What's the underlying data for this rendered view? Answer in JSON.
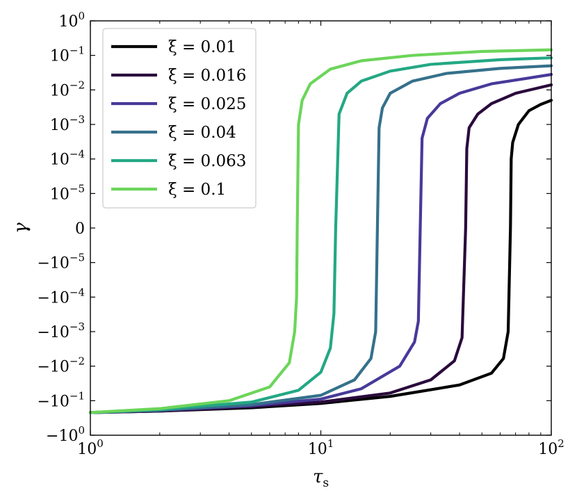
{
  "chart_data": {
    "type": "line",
    "xlabel": "τ",
    "xlabel_sub": "s",
    "ylabel": "γ",
    "x_scale": "log",
    "y_scale": "symlog",
    "xlim": [
      1,
      100
    ],
    "ylim": [
      -1,
      1
    ],
    "x_ticks": [
      {
        "value": 1,
        "base": "10",
        "exp": "0"
      },
      {
        "value": 10,
        "base": "10",
        "exp": "1"
      },
      {
        "value": 100,
        "base": "10",
        "exp": "2"
      }
    ],
    "y_ticks": [
      {
        "value": 1,
        "sign": "",
        "base": "10",
        "exp": "0"
      },
      {
        "value": 0.1,
        "sign": "",
        "base": "10",
        "exp": "−1"
      },
      {
        "value": 0.01,
        "sign": "",
        "base": "10",
        "exp": "−2"
      },
      {
        "value": 0.001,
        "sign": "",
        "base": "10",
        "exp": "−3"
      },
      {
        "value": 0.0001,
        "sign": "",
        "base": "10",
        "exp": "−4"
      },
      {
        "value": 1e-05,
        "sign": "",
        "base": "10",
        "exp": "−5"
      },
      {
        "value": 0,
        "sign": "",
        "base": "0",
        "exp": ""
      },
      {
        "value": -1e-05,
        "sign": "−",
        "base": "10",
        "exp": "−5"
      },
      {
        "value": -0.0001,
        "sign": "−",
        "base": "10",
        "exp": "−4"
      },
      {
        "value": -0.001,
        "sign": "−",
        "base": "10",
        "exp": "−3"
      },
      {
        "value": -0.01,
        "sign": "−",
        "base": "10",
        "exp": "−2"
      },
      {
        "value": -0.1,
        "sign": "−",
        "base": "10",
        "exp": "−1"
      },
      {
        "value": -1,
        "sign": "−",
        "base": "10",
        "exp": "0"
      }
    ],
    "legend": "top-left",
    "grid": false,
    "series": [
      {
        "name": "ξ = 0.01",
        "color": "#000004",
        "x": [
          1,
          2,
          5,
          10,
          20,
          40,
          55,
          62,
          65,
          66.5,
          67,
          68,
          72,
          80,
          90,
          100
        ],
        "y": [
          -0.22,
          -0.2,
          -0.16,
          -0.12,
          -0.075,
          -0.035,
          -0.016,
          -0.006,
          -0.001,
          0,
          0.0001,
          0.0003,
          0.001,
          0.0025,
          0.0038,
          0.005
        ]
      },
      {
        "name": "ξ = 0.016",
        "color": "#2a0a3c",
        "x": [
          1,
          2,
          5,
          10,
          20,
          30,
          38,
          41,
          42.5,
          43,
          44,
          48,
          55,
          70,
          100
        ],
        "y": [
          -0.22,
          -0.2,
          -0.15,
          -0.11,
          -0.06,
          -0.025,
          -0.007,
          -0.0015,
          0,
          0.0002,
          0.0008,
          0.002,
          0.004,
          0.008,
          0.014
        ]
      },
      {
        "name": "ξ = 0.025",
        "color": "#473a99",
        "x": [
          1,
          2,
          5,
          10,
          15,
          22,
          25.5,
          26.5,
          27,
          27.5,
          29,
          33,
          40,
          55,
          100
        ],
        "y": [
          -0.22,
          -0.19,
          -0.14,
          -0.09,
          -0.045,
          -0.01,
          -0.002,
          -0.0005,
          0,
          0.0004,
          0.0015,
          0.004,
          0.008,
          0.015,
          0.028
        ]
      },
      {
        "name": "ξ = 0.04",
        "color": "#35718b",
        "x": [
          1,
          2,
          5,
          10,
          14,
          16.5,
          17.3,
          17.6,
          17.9,
          18.5,
          20,
          25,
          35,
          60,
          100
        ],
        "y": [
          -0.22,
          -0.19,
          -0.13,
          -0.07,
          -0.025,
          -0.006,
          -0.001,
          0,
          0.0008,
          0.003,
          0.008,
          0.018,
          0.03,
          0.042,
          0.05
        ]
      },
      {
        "name": "ξ = 0.063",
        "color": "#23a884",
        "x": [
          1,
          2,
          5,
          8,
          10,
          11,
          11.4,
          11.6,
          12,
          13,
          15,
          20,
          30,
          60,
          100
        ],
        "y": [
          -0.22,
          -0.18,
          -0.11,
          -0.05,
          -0.015,
          -0.003,
          -0.0003,
          0,
          0.002,
          0.008,
          0.018,
          0.035,
          0.055,
          0.075,
          0.085
        ]
      },
      {
        "name": "ξ = 0.1",
        "color": "#6cd55a",
        "x": [
          1,
          2,
          4,
          6,
          7.3,
          7.7,
          7.85,
          7.9,
          8.0,
          8.3,
          9,
          11,
          15,
          25,
          50,
          100
        ],
        "y": [
          -0.22,
          -0.17,
          -0.1,
          -0.04,
          -0.008,
          -0.001,
          -0.0001,
          0,
          0.001,
          0.005,
          0.015,
          0.04,
          0.07,
          0.1,
          0.13,
          0.145
        ]
      }
    ]
  }
}
